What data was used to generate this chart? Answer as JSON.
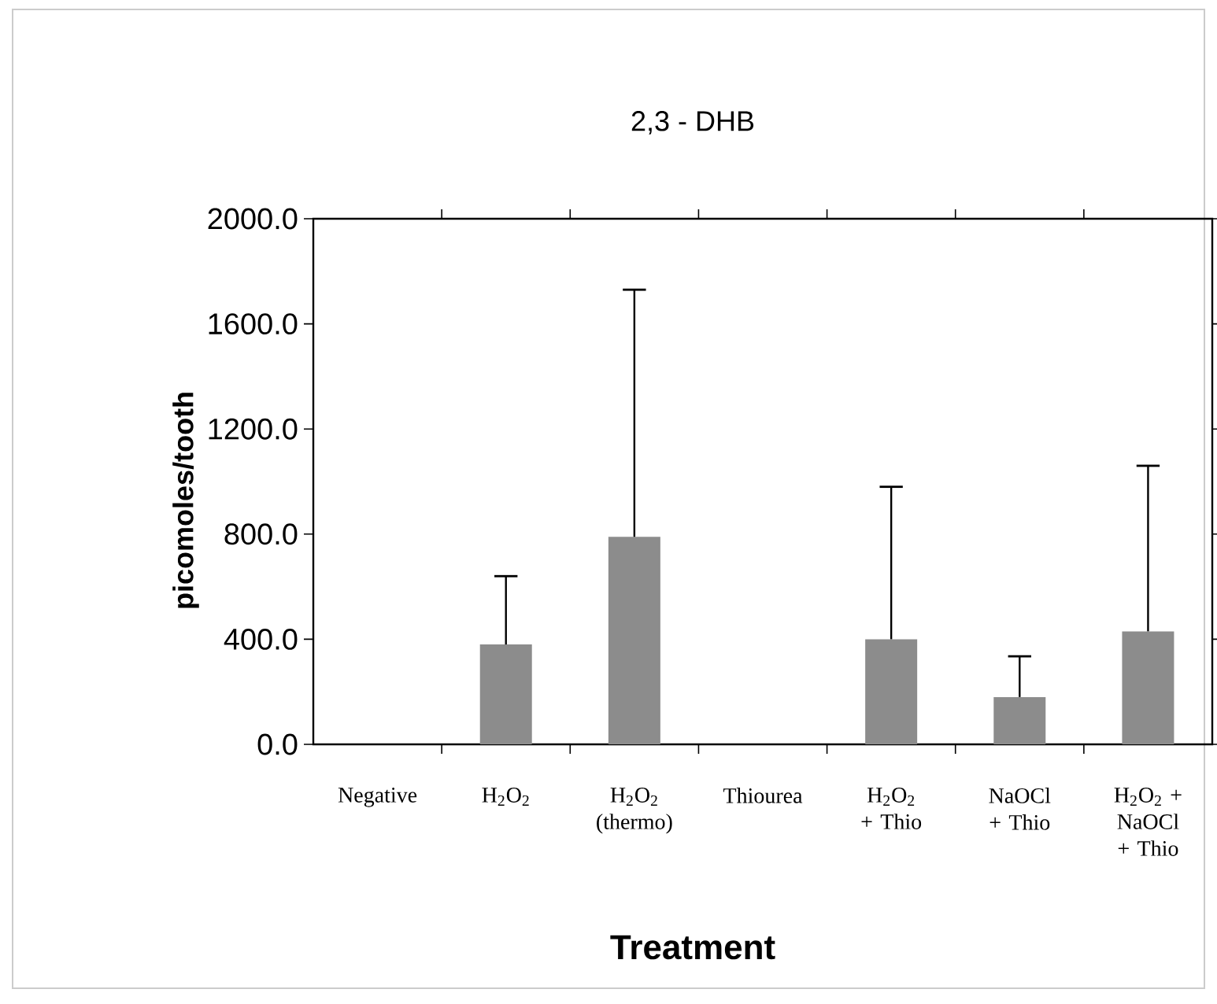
{
  "chart_data": {
    "type": "bar",
    "title": "2,3 - DHB",
    "xlabel": "Treatment",
    "ylabel": "picomoles/tooth",
    "categories": [
      "Negative",
      "H$_{2}$O$_{2}$",
      "H$_{2}$O$_{2}$ (thermo)",
      "Thiourea",
      "H$_{2}$O$_{2}$ + Thio",
      "NaOCl + Thio",
      "H$_{2}$O$_{2}$ + NaOCl + Thio"
    ],
    "values": [
      0,
      380,
      790,
      0,
      400,
      180,
      430
    ],
    "errors": [
      null,
      [
        380,
        640
      ],
      [
        790,
        1730
      ],
      null,
      [
        400,
        980
      ],
      [
        180,
        335
      ],
      [
        430,
        1060
      ]
    ],
    "color": "#8c8c8c",
    "ylim": [
      0,
      2000
    ],
    "yticks": [
      {
        "value": 0,
        "label": "0.0"
      },
      {
        "value": 400,
        "label": "400.0"
      },
      {
        "value": 800,
        "label": "800.0"
      },
      {
        "value": 1200,
        "label": "1200.0"
      },
      {
        "value": 1600,
        "label": "1600.0"
      },
      {
        "value": 2000,
        "label": "2000.0"
      }
    ],
    "grid": false
  }
}
